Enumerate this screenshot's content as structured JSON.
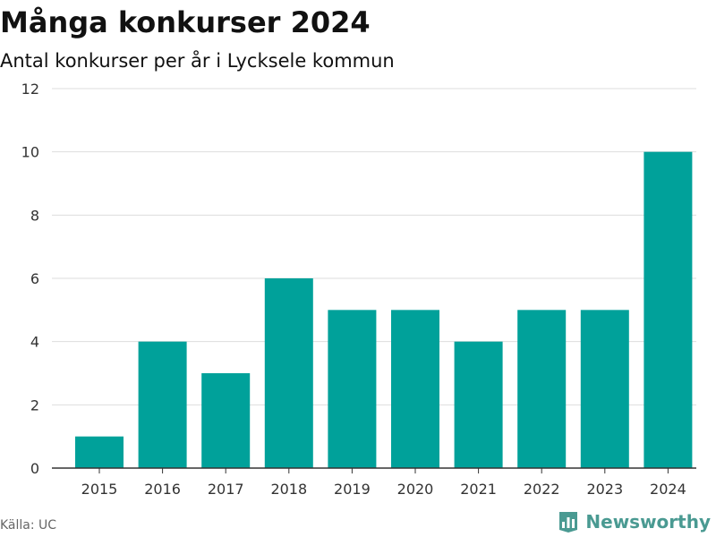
{
  "header": {
    "title": "Många konkurser 2024",
    "subtitle": "Antal konkurser per år i Lycksele kommun"
  },
  "footer": {
    "source": "Källa: UC",
    "brand": "Newsworthy",
    "brand_icon": "bar-chart-logo-icon"
  },
  "colors": {
    "bar": "#00a19a",
    "grid": "#dddddd",
    "axis": "#333333",
    "brand": "#4a9a92"
  },
  "chart_data": {
    "type": "bar",
    "categories": [
      "2015",
      "2016",
      "2017",
      "2018",
      "2019",
      "2020",
      "2021",
      "2022",
      "2023",
      "2024"
    ],
    "values": [
      1,
      4,
      3,
      6,
      5,
      5,
      4,
      5,
      5,
      10
    ],
    "title": "Många konkurser 2024",
    "subtitle": "Antal konkurser per år i Lycksele kommun",
    "xlabel": "",
    "ylabel": "",
    "ylim": [
      0,
      12
    ],
    "yticks": [
      0,
      2,
      4,
      6,
      8,
      10,
      12
    ],
    "grid": true,
    "legend": "none"
  }
}
